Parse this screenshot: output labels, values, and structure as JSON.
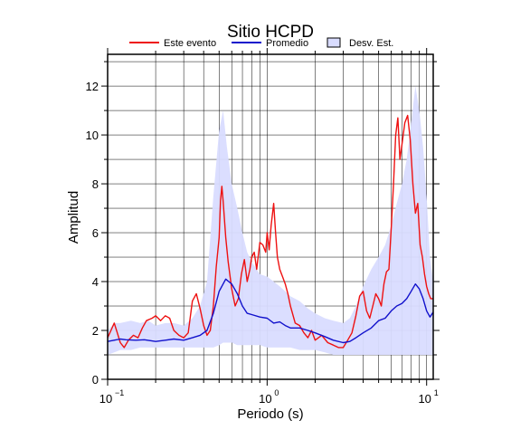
{
  "chart_data": {
    "type": "line",
    "title": "Sitio HCPD",
    "xlabel": "Periodo (s)",
    "ylabel": "Amplitud",
    "x_scale": "log",
    "xlim": [
      0.1,
      11
    ],
    "ylim": [
      0,
      13.3
    ],
    "x_ticks": [
      {
        "value": 0.1,
        "base": "10",
        "exp": "−1"
      },
      {
        "value": 1,
        "base": "10",
        "exp": "0"
      },
      {
        "value": 10,
        "base": "10",
        "exp": "1"
      }
    ],
    "y_ticks": [
      0,
      2,
      4,
      6,
      8,
      10,
      12
    ],
    "grid": true,
    "legend_position": "top",
    "legend": [
      {
        "label": "Este evento",
        "kind": "line",
        "color": "#ee1111"
      },
      {
        "label": "Promedio",
        "kind": "line",
        "color": "#1111cc"
      },
      {
        "label": "Desv. Est.",
        "kind": "band",
        "color": "#d9dcff"
      }
    ],
    "series": [
      {
        "name": "Este evento",
        "color": "#ee1111",
        "x": [
          0.1,
          0.105,
          0.11,
          0.115,
          0.12,
          0.127,
          0.135,
          0.145,
          0.155,
          0.165,
          0.175,
          0.19,
          0.2,
          0.215,
          0.23,
          0.245,
          0.26,
          0.28,
          0.3,
          0.32,
          0.34,
          0.36,
          0.38,
          0.4,
          0.42,
          0.44,
          0.46,
          0.48,
          0.5,
          0.51,
          0.52,
          0.53,
          0.55,
          0.57,
          0.6,
          0.63,
          0.66,
          0.69,
          0.72,
          0.75,
          0.78,
          0.8,
          0.83,
          0.86,
          0.9,
          0.94,
          0.98,
          1.0,
          1.03,
          1.06,
          1.1,
          1.13,
          1.16,
          1.2,
          1.25,
          1.3,
          1.35,
          1.4,
          1.5,
          1.6,
          1.7,
          1.8,
          1.9,
          2.0,
          2.2,
          2.4,
          2.6,
          2.8,
          3.0,
          3.2,
          3.4,
          3.6,
          3.8,
          4.0,
          4.2,
          4.4,
          4.6,
          4.8,
          5.0,
          5.2,
          5.4,
          5.6,
          5.8,
          6.0,
          6.2,
          6.4,
          6.6,
          6.8,
          7.0,
          7.3,
          7.6,
          7.9,
          8.2,
          8.5,
          8.8,
          9.1,
          9.4,
          9.7,
          10.0,
          10.3,
          10.6,
          11.0
        ],
        "y": [
          1.7,
          2.0,
          2.3,
          1.9,
          1.5,
          1.3,
          1.6,
          1.8,
          1.7,
          2.1,
          2.4,
          2.5,
          2.6,
          2.4,
          2.6,
          2.5,
          2.0,
          1.8,
          1.7,
          1.9,
          3.2,
          3.5,
          2.9,
          2.2,
          1.8,
          2.0,
          3.0,
          4.6,
          5.8,
          7.3,
          7.9,
          7.3,
          5.8,
          4.8,
          3.7,
          3.0,
          3.3,
          4.3,
          4.9,
          4.0,
          4.5,
          5.0,
          5.2,
          4.5,
          5.6,
          5.5,
          5.2,
          6.0,
          5.3,
          6.3,
          7.2,
          6.0,
          5.0,
          4.5,
          4.2,
          3.9,
          3.5,
          3.0,
          2.3,
          2.2,
          1.9,
          1.7,
          2.0,
          1.6,
          1.8,
          1.5,
          1.4,
          1.3,
          1.3,
          1.6,
          1.9,
          2.6,
          3.4,
          3.6,
          2.8,
          2.5,
          3.0,
          3.5,
          3.3,
          3.0,
          3.9,
          4.4,
          4.5,
          6.2,
          8.0,
          10.0,
          10.7,
          9.0,
          9.6,
          10.5,
          10.8,
          9.8,
          8.0,
          6.8,
          7.2,
          5.5,
          5.0,
          4.3,
          3.8,
          3.5,
          3.3,
          3.3
        ]
      },
      {
        "name": "Promedio",
        "color": "#1111cc",
        "x": [
          0.1,
          0.11,
          0.12,
          0.13,
          0.15,
          0.17,
          0.2,
          0.23,
          0.26,
          0.3,
          0.34,
          0.38,
          0.42,
          0.46,
          0.5,
          0.55,
          0.6,
          0.65,
          0.7,
          0.75,
          0.8,
          0.9,
          1.0,
          1.1,
          1.2,
          1.3,
          1.4,
          1.6,
          1.8,
          2.0,
          2.3,
          2.6,
          3.0,
          3.3,
          3.6,
          4.0,
          4.5,
          5.0,
          5.5,
          6.0,
          6.5,
          7.0,
          7.5,
          8.0,
          8.5,
          9.0,
          9.5,
          10.0,
          10.5,
          11.0
        ],
        "y": [
          1.55,
          1.6,
          1.65,
          1.62,
          1.6,
          1.62,
          1.55,
          1.6,
          1.65,
          1.6,
          1.7,
          1.8,
          2.0,
          2.7,
          3.6,
          4.1,
          3.9,
          3.5,
          3.0,
          2.7,
          2.65,
          2.55,
          2.5,
          2.3,
          2.35,
          2.2,
          2.1,
          2.1,
          2.0,
          1.9,
          1.75,
          1.6,
          1.5,
          1.55,
          1.7,
          1.9,
          2.1,
          2.4,
          2.5,
          2.8,
          3.0,
          3.1,
          3.3,
          3.6,
          3.9,
          3.7,
          3.3,
          2.8,
          2.55,
          2.75
        ]
      }
    ],
    "band": {
      "name": "Desv. Est.",
      "color": "#d9dcff",
      "x": [
        0.1,
        0.11,
        0.12,
        0.14,
        0.16,
        0.18,
        0.2,
        0.23,
        0.26,
        0.3,
        0.34,
        0.38,
        0.42,
        0.46,
        0.5,
        0.53,
        0.56,
        0.6,
        0.65,
        0.7,
        0.75,
        0.8,
        0.9,
        1.0,
        1.1,
        1.2,
        1.3,
        1.4,
        1.6,
        1.8,
        2.0,
        2.3,
        2.6,
        3.0,
        3.3,
        3.6,
        4.0,
        4.5,
        5.0,
        5.5,
        6.0,
        6.5,
        7.0,
        7.5,
        8.0,
        8.5,
        9.0,
        9.5,
        10.0,
        10.5,
        11.0
      ],
      "upper": [
        2.0,
        2.3,
        2.3,
        2.4,
        2.3,
        2.4,
        2.2,
        2.3,
        2.3,
        2.2,
        2.5,
        3.0,
        4.0,
        7.5,
        10.2,
        11.0,
        9.5,
        8.0,
        7.0,
        6.0,
        5.2,
        4.8,
        4.3,
        4.2,
        4.0,
        3.8,
        3.6,
        3.4,
        3.2,
        2.9,
        2.7,
        2.5,
        2.4,
        2.3,
        2.5,
        3.0,
        3.8,
        4.5,
        5.0,
        5.5,
        6.3,
        7.2,
        8.0,
        9.0,
        10.5,
        12.0,
        11.0,
        9.5,
        7.5,
        5.0,
        4.0
      ],
      "lower": [
        1.0,
        1.1,
        1.2,
        1.2,
        1.3,
        1.3,
        1.3,
        1.3,
        1.3,
        1.3,
        1.3,
        1.3,
        1.3,
        1.3,
        1.4,
        1.5,
        1.5,
        1.5,
        1.4,
        1.4,
        1.4,
        1.4,
        1.4,
        1.3,
        1.3,
        1.3,
        1.3,
        1.3,
        1.2,
        1.2,
        1.2,
        1.1,
        1.0,
        1.0,
        1.0,
        1.0,
        1.0,
        1.0,
        1.0,
        1.0,
        1.0,
        1.0,
        1.0,
        1.0,
        1.0,
        1.0,
        1.0,
        1.0,
        1.0,
        1.0,
        1.0
      ]
    }
  }
}
